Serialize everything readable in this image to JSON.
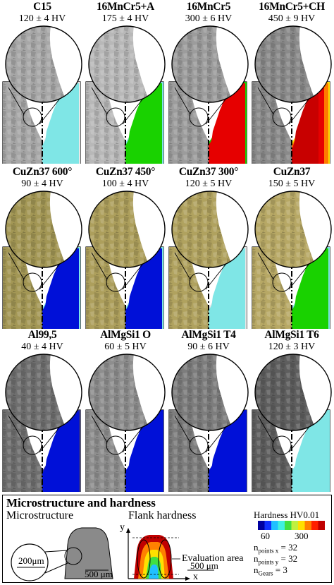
{
  "cells": [
    {
      "material": "C15",
      "hardness": "120 ± 4 HV",
      "micro": "#a7a7a7",
      "hmap": [
        "#e8e8e8",
        "#7fe6e6",
        "#7fe6e6",
        "#7fe6e6"
      ]
    },
    {
      "material": "16MnCr5+A",
      "hardness": "175 ± 4 HV",
      "micro": "#b8b8b8",
      "hmap": [
        "#7fe6e6",
        "#19d200",
        "#19d200",
        "#19d200"
      ]
    },
    {
      "material": "16MnCr5",
      "hardness": "300 ± 6 HV",
      "micro": "#9c9c9c",
      "hmap": [
        "#19d200",
        "#e60000",
        "#e60000",
        "#e60000"
      ]
    },
    {
      "material": "16MnCr5+CH",
      "hardness": "450 ± 9 HV",
      "micro": "#8a8a8a",
      "hmap": [
        "#ffe000",
        "#ff7a00",
        "#e60000",
        "#c80000"
      ]
    },
    {
      "material": "CuZn37 600°",
      "hardness": "90 ± 4 HV",
      "micro": "#a39755",
      "hmap": [
        "#7fe6e6",
        "#0010d8",
        "#0010d8",
        "#0010d8"
      ]
    },
    {
      "material": "CuZn37 450°",
      "hardness": "100 ± 4 HV",
      "micro": "#ad9f5c",
      "hmap": [
        "#7fe6e6",
        "#0010d8",
        "#0010d8",
        "#0010d8"
      ]
    },
    {
      "material": "CuZn37 300°",
      "hardness": "120 ± 5 HV",
      "micro": "#b0a25f",
      "hmap": [
        "#e8e8e8",
        "#7fe6e6",
        "#7fe6e6",
        "#7fe6e6"
      ]
    },
    {
      "material": "CuZn37",
      "hardness": "150 ± 5 HV",
      "micro": "#b7a865",
      "hmap": [
        "#7fe6e6",
        "#19d200",
        "#19d200",
        "#19d200"
      ]
    },
    {
      "material": "Al99,5",
      "hardness": "40 ± 4 HV",
      "micro": "#6f6f6f",
      "hmap": [
        "#2a2a9c",
        "#0010d8",
        "#0010d8",
        "#0010d8"
      ]
    },
    {
      "material": "AlMgSi1 O",
      "hardness": "60 ± 5 HV",
      "micro": "#8e8e8e",
      "hmap": [
        "#0010d8",
        "#0010d8",
        "#0010d8",
        "#0010d8"
      ]
    },
    {
      "material": "AlMgSi1 T4",
      "hardness": "90 ± 6 HV",
      "micro": "#7d7d7d",
      "hmap": [
        "#0010d8",
        "#0010d8",
        "#0010d8",
        "#0010d8"
      ]
    },
    {
      "material": "AlMgSi1 T6",
      "hardness": "120 ± 3 HV",
      "micro": "#5e5e5e",
      "hmap": [
        "#7fe6e6",
        "#7fe6e6",
        "#7fe6e6",
        "#7fe6e6"
      ]
    }
  ],
  "legend": {
    "title": "Microstructure and hardness",
    "micro_label": "Microstructure",
    "flank_label": "Flank hardness",
    "circle_scale": "200μm",
    "tooth_scale": "500 μm",
    "eval_area": "Evaluation area",
    "flank_scale": "500 μm",
    "axis_y": "y",
    "axis_x": "x",
    "hardness_title": "Hardness HV0.01",
    "tick_60": "60",
    "tick_300": "300",
    "colorbar": [
      "#0000a0",
      "#1030ff",
      "#20c0ff",
      "#40f0e0",
      "#40e040",
      "#c0f040",
      "#ffe000",
      "#ff8000",
      "#ff2000",
      "#c00000"
    ],
    "n_points_x": "= 32",
    "n_points_y": "= 32",
    "n_gears": "= 3",
    "n_sym": "n",
    "sub_points_x": "points x",
    "sub_points_y": "points y",
    "sub_gears": "Gears"
  }
}
